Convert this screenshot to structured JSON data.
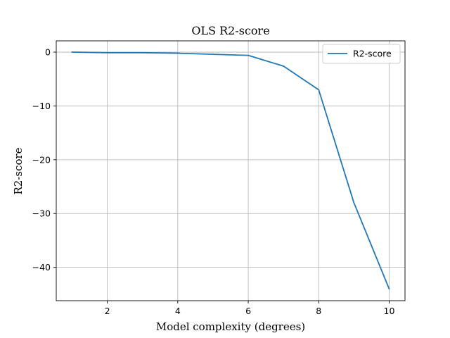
{
  "chart_data": {
    "type": "line",
    "title": "OLS R2-score",
    "xlabel": "Model complexity (degrees)",
    "ylabel": "R2-score",
    "x": [
      1,
      2,
      3,
      4,
      5,
      6,
      7,
      8,
      9,
      10
    ],
    "series": [
      {
        "name": "R2-score",
        "values": [
          0.0,
          -0.1,
          -0.1,
          -0.2,
          -0.4,
          -0.6,
          -2.6,
          -7.0,
          -28.0,
          -44.0
        ],
        "color": "#1f77b4"
      }
    ],
    "xlim": [
      0.55,
      10.45
    ],
    "ylim": [
      -46.2,
      2.1
    ],
    "xticks": [
      2,
      4,
      6,
      8,
      10
    ],
    "yticks": [
      0,
      -10,
      -20,
      -30,
      -40
    ],
    "xtick_labels": [
      "2",
      "4",
      "6",
      "8",
      "10"
    ],
    "ytick_labels": [
      "0",
      "−10",
      "−20",
      "−30",
      "−40"
    ],
    "grid": true,
    "legend": "upper right"
  }
}
